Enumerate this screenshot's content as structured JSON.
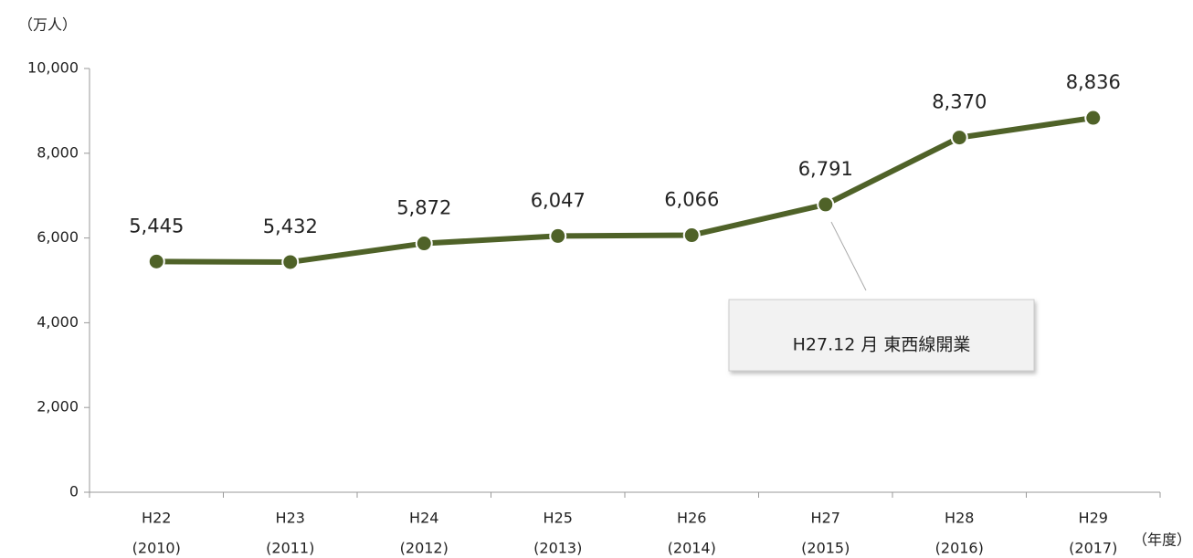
{
  "chart_data": {
    "type": "line",
    "y_label": "（万人）",
    "x_label": "（年度）",
    "categories": [
      [
        "H22",
        "(2010)"
      ],
      [
        "H23",
        "(2011)"
      ],
      [
        "H24",
        "(2012)"
      ],
      [
        "H25",
        "(2013)"
      ],
      [
        "H26",
        "(2014)"
      ],
      [
        "H27",
        "(2015)"
      ],
      [
        "H28",
        "(2016)"
      ],
      [
        "H29",
        "(2017)"
      ]
    ],
    "values": [
      5445,
      5432,
      5872,
      6047,
      6066,
      6791,
      8370,
      8836
    ],
    "value_labels": [
      "5,445",
      "5,432",
      "5,872",
      "6,047",
      "6,066",
      "6,791",
      "8,370",
      "8,836"
    ],
    "color": "#4f6228",
    "ylim": [
      0,
      10000
    ],
    "yticks": [
      0,
      {
        "value": 2000,
        "label": "2,000"
      },
      {
        "value": 4000,
        "label": "4,000"
      },
      {
        "value": 6000,
        "label": "6,000"
      },
      {
        "value": 8000,
        "label": "8,000"
      },
      {
        "value": 10000,
        "label": "10,000"
      }
    ],
    "grid": false,
    "annotation": "H27.12 月  東西線開業"
  }
}
